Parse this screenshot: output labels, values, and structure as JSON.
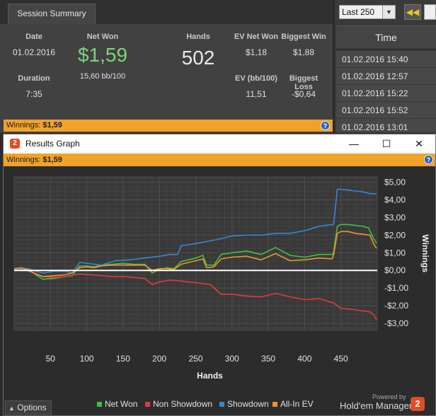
{
  "summary": {
    "tab_label": "Session Summary",
    "date_label": "Date",
    "date_value": "01.02.2016",
    "duration_label": "Duration",
    "duration_value": "7:35",
    "net_won_label": "Net Won",
    "net_won_value": "$1,59",
    "bb_per_100": "15,60 bb/100",
    "hands_label": "Hands",
    "hands_value": "502",
    "ev_net_won_label": "EV Net Won",
    "ev_net_won_value": "$1,18",
    "biggest_win_label": "Biggest Win",
    "biggest_win_value": "$1,88",
    "ev_bb100_label": "EV (bb/100)",
    "ev_bb100_value": "11,51",
    "biggest_loss_label": "Biggest Loss",
    "biggest_loss_value": "-$0,64",
    "winnings_label": "Winnings:",
    "winnings_value": "$1,59",
    "net_won_color": "#7ed37e"
  },
  "right_panel": {
    "filter_selected": "Last 250",
    "time_header": "Time",
    "times": [
      "01.02.2016 15:40",
      "01.02.2016 12:57",
      "01.02.2016 15:22",
      "01.02.2016 15:52",
      "01.02.2016 13:01"
    ]
  },
  "window": {
    "title": "Results Graph",
    "app_icon_glyph": "2",
    "minimize_glyph": "—",
    "maximize_glyph": "☐",
    "close_glyph": "✕",
    "winnings_label": "Winnings:",
    "winnings_value": "$1,59",
    "help_glyph": "?",
    "options_label": "Options",
    "powered_by": "Powered by",
    "brand": "Hold'em Manager",
    "brand_glyph": "2",
    "accent_color": "#f0a22a"
  },
  "chart_data": {
    "type": "line",
    "xlabel": "Hands",
    "ylabel": "Winnings",
    "xlim": [
      0,
      500
    ],
    "ylim": [
      -3.4,
      5.3
    ],
    "x_ticks": [
      50,
      100,
      150,
      200,
      250,
      300,
      350,
      400,
      450
    ],
    "x_tick_labels": [
      "50",
      "100",
      "150",
      "200",
      "250",
      "300",
      "350",
      "400",
      "450"
    ],
    "y_ticks": [
      5,
      4,
      3,
      2,
      1,
      0,
      -1,
      -2,
      -3
    ],
    "y_tick_labels": [
      "$5,00",
      "$4,00",
      "$3,00",
      "$2,00",
      "$1,00",
      "$0,00",
      "-$1,00",
      "-$2,00",
      "-$3,00"
    ],
    "grid": true,
    "legend_position": "bottom",
    "series": [
      {
        "name": "Net Won",
        "color": "#3ec23e",
        "x": [
          0,
          10,
          20,
          30,
          40,
          55,
          70,
          80,
          90,
          100,
          110,
          120,
          135,
          150,
          165,
          180,
          190,
          195,
          200,
          210,
          220,
          230,
          240,
          250,
          260,
          265,
          275,
          285,
          300,
          320,
          340,
          360,
          380,
          400,
          420,
          438,
          440,
          445,
          450,
          460,
          470,
          480,
          488,
          495,
          499
        ],
        "y": [
          0.05,
          0.15,
          0.05,
          -0.25,
          -0.5,
          -0.45,
          -0.35,
          -0.3,
          0.25,
          0.25,
          0.2,
          0.3,
          0.35,
          0.4,
          0.35,
          0.35,
          -0.15,
          -0.05,
          0.05,
          0.15,
          0.1,
          0.5,
          0.6,
          0.7,
          0.85,
          0.3,
          0.3,
          0.9,
          1.0,
          1.1,
          0.9,
          1.3,
          0.85,
          0.75,
          0.9,
          0.9,
          1.05,
          2.5,
          2.6,
          2.6,
          2.55,
          2.5,
          2.4,
          1.8,
          1.55
        ]
      },
      {
        "name": "Non Showdown",
        "color": "#e03b3b",
        "x": [
          0,
          10,
          20,
          30,
          40,
          55,
          70,
          90,
          105,
          120,
          135,
          150,
          165,
          180,
          190,
          200,
          215,
          230,
          250,
          270,
          285,
          300,
          320,
          340,
          360,
          380,
          400,
          420,
          440,
          450,
          465,
          480,
          490,
          495,
          499
        ],
        "y": [
          0.0,
          0.05,
          -0.05,
          -0.2,
          -0.35,
          -0.4,
          -0.35,
          -0.2,
          -0.25,
          -0.3,
          -0.35,
          -0.35,
          -0.4,
          -0.45,
          -0.8,
          -0.65,
          -0.55,
          -0.6,
          -0.7,
          -0.8,
          -1.35,
          -1.35,
          -1.45,
          -1.5,
          -1.3,
          -1.5,
          -1.65,
          -1.6,
          -1.85,
          -2.15,
          -2.2,
          -2.3,
          -2.35,
          -2.5,
          -2.8
        ]
      },
      {
        "name": "Showdown",
        "color": "#3a86d0",
        "x": [
          0,
          10,
          20,
          30,
          40,
          55,
          70,
          80,
          90,
          100,
          120,
          140,
          160,
          180,
          200,
          215,
          225,
          230,
          240,
          260,
          280,
          300,
          320,
          340,
          360,
          380,
          400,
          420,
          440,
          445,
          450,
          460,
          470,
          480,
          490,
          499
        ],
        "y": [
          0.05,
          0.1,
          0.1,
          -0.05,
          -0.15,
          -0.05,
          -0.05,
          -0.15,
          0.45,
          0.4,
          0.3,
          0.55,
          0.6,
          0.7,
          0.8,
          0.9,
          0.9,
          1.4,
          1.45,
          1.6,
          1.75,
          1.95,
          2.0,
          2.0,
          2.1,
          2.1,
          2.25,
          2.5,
          2.6,
          4.6,
          4.6,
          4.55,
          4.5,
          4.45,
          4.35,
          4.35
        ]
      },
      {
        "name": "All-In EV",
        "color": "#f2932c",
        "x": [
          0,
          10,
          20,
          30,
          40,
          55,
          70,
          80,
          90,
          100,
          110,
          120,
          135,
          150,
          165,
          180,
          190,
          200,
          210,
          220,
          230,
          240,
          250,
          260,
          265,
          275,
          285,
          300,
          320,
          340,
          360,
          380,
          400,
          420,
          438,
          440,
          445,
          450,
          460,
          470,
          480,
          490,
          495,
          499
        ],
        "y": [
          0.1,
          0.15,
          0.0,
          -0.2,
          -0.35,
          -0.3,
          -0.25,
          -0.15,
          0.15,
          0.2,
          0.15,
          0.25,
          0.3,
          0.3,
          0.3,
          0.3,
          0.0,
          0.1,
          0.1,
          0.05,
          0.35,
          0.45,
          0.55,
          0.65,
          0.15,
          0.2,
          0.65,
          0.75,
          0.8,
          0.6,
          0.95,
          0.55,
          0.6,
          0.7,
          0.65,
          0.9,
          2.1,
          2.2,
          2.2,
          2.1,
          2.05,
          2.0,
          1.5,
          1.25
        ]
      }
    ],
    "zero_line_color": "#ffffff"
  }
}
